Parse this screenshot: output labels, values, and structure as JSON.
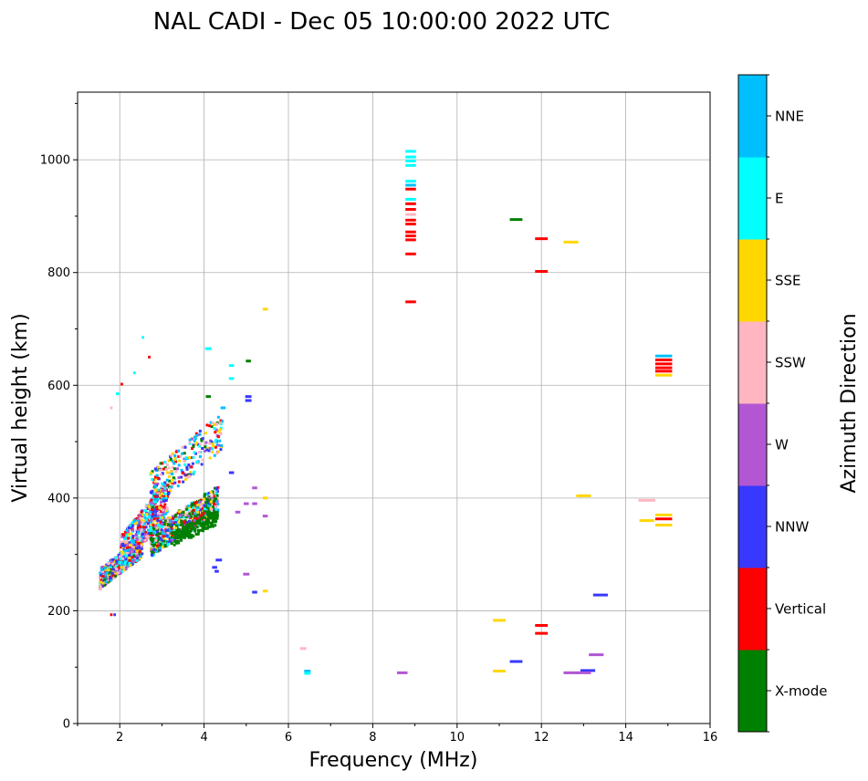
{
  "chart_data": {
    "type": "scatter",
    "title": "NAL CADI - Dec 05 10:00:00 2022 UTC",
    "xlabel": "Frequency (MHz)",
    "ylabel": "Virtual height (km)",
    "xlim": [
      1,
      16
    ],
    "ylim": [
      0,
      1120
    ],
    "xticks": [
      2,
      4,
      6,
      8,
      10,
      12,
      14,
      16
    ],
    "yticks": [
      0,
      200,
      400,
      600,
      800,
      1000
    ],
    "grid": true,
    "colorbar": {
      "title": "Azimuth Direction",
      "categories": [
        {
          "name": "X-mode",
          "color": "#008000"
        },
        {
          "name": "Vertical",
          "color": "#ff0000"
        },
        {
          "name": "NNW",
          "color": "#3838ff"
        },
        {
          "name": "W",
          "color": "#b256d4"
        },
        {
          "name": "SSW",
          "color": "#ffb6c1"
        },
        {
          "name": "SSE",
          "color": "#ffd700"
        },
        {
          "name": "E",
          "color": "#00ffff"
        },
        {
          "name": "NNE",
          "color": "#00bfff"
        }
      ]
    },
    "echoes": [
      {
        "f": 8.9,
        "h": 1015,
        "cat": "E",
        "w": 0.25
      },
      {
        "f": 8.9,
        "h": 1005,
        "cat": "E",
        "w": 0.25
      },
      {
        "f": 8.9,
        "h": 998,
        "cat": "E",
        "w": 0.25
      },
      {
        "f": 8.9,
        "h": 990,
        "cat": "E",
        "w": 0.25
      },
      {
        "f": 8.9,
        "h": 962,
        "cat": "E",
        "w": 0.25
      },
      {
        "f": 8.9,
        "h": 955,
        "cat": "NNE",
        "w": 0.25
      },
      {
        "f": 8.9,
        "h": 948,
        "cat": "Vertical",
        "w": 0.25
      },
      {
        "f": 8.9,
        "h": 930,
        "cat": "E",
        "w": 0.25
      },
      {
        "f": 8.9,
        "h": 922,
        "cat": "Vertical",
        "w": 0.25
      },
      {
        "f": 8.9,
        "h": 912,
        "cat": "Vertical",
        "w": 0.25
      },
      {
        "f": 8.9,
        "h": 903,
        "cat": "SSW",
        "w": 0.25
      },
      {
        "f": 8.9,
        "h": 893,
        "cat": "Vertical",
        "w": 0.25
      },
      {
        "f": 8.9,
        "h": 886,
        "cat": "Vertical",
        "w": 0.25
      },
      {
        "f": 8.9,
        "h": 872,
        "cat": "Vertical",
        "w": 0.25
      },
      {
        "f": 8.9,
        "h": 865,
        "cat": "Vertical",
        "w": 0.25
      },
      {
        "f": 8.9,
        "h": 858,
        "cat": "Vertical",
        "w": 0.25
      },
      {
        "f": 8.9,
        "h": 833,
        "cat": "Vertical",
        "w": 0.25
      },
      {
        "f": 8.9,
        "h": 748,
        "cat": "Vertical",
        "w": 0.25
      },
      {
        "f": 11.4,
        "h": 894,
        "cat": "X-mode",
        "w": 0.3
      },
      {
        "f": 12.0,
        "h": 860,
        "cat": "Vertical",
        "w": 0.3
      },
      {
        "f": 12.7,
        "h": 854,
        "cat": "SSE",
        "w": 0.35
      },
      {
        "f": 12.0,
        "h": 802,
        "cat": "Vertical",
        "w": 0.3
      },
      {
        "f": 14.9,
        "h": 652,
        "cat": "NNE",
        "w": 0.4
      },
      {
        "f": 14.9,
        "h": 645,
        "cat": "Vertical",
        "w": 0.4
      },
      {
        "f": 14.9,
        "h": 638,
        "cat": "Vertical",
        "w": 0.4
      },
      {
        "f": 14.9,
        "h": 631,
        "cat": "Vertical",
        "w": 0.4
      },
      {
        "f": 14.9,
        "h": 625,
        "cat": "Vertical",
        "w": 0.4
      },
      {
        "f": 14.9,
        "h": 618,
        "cat": "SSE",
        "w": 0.4
      },
      {
        "f": 13.0,
        "h": 404,
        "cat": "SSE",
        "w": 0.35
      },
      {
        "f": 14.5,
        "h": 396,
        "cat": "SSW",
        "w": 0.4
      },
      {
        "f": 14.9,
        "h": 370,
        "cat": "SSE",
        "w": 0.4
      },
      {
        "f": 14.9,
        "h": 363,
        "cat": "Vertical",
        "w": 0.4
      },
      {
        "f": 14.5,
        "h": 360,
        "cat": "SSE",
        "w": 0.35
      },
      {
        "f": 14.9,
        "h": 352,
        "cat": "SSE",
        "w": 0.4
      },
      {
        "f": 13.4,
        "h": 228,
        "cat": "NNW",
        "w": 0.35
      },
      {
        "f": 11.0,
        "h": 183,
        "cat": "SSE",
        "w": 0.3
      },
      {
        "f": 12.0,
        "h": 174,
        "cat": "Vertical",
        "w": 0.3
      },
      {
        "f": 12.0,
        "h": 160,
        "cat": "Vertical",
        "w": 0.3
      },
      {
        "f": 13.3,
        "h": 122,
        "cat": "W",
        "w": 0.35
      },
      {
        "f": 11.4,
        "h": 110,
        "cat": "NNW",
        "w": 0.3
      },
      {
        "f": 11.0,
        "h": 93,
        "cat": "SSE",
        "w": 0.3
      },
      {
        "f": 13.1,
        "h": 94,
        "cat": "NNW",
        "w": 0.35
      },
      {
        "f": 13.0,
        "h": 90,
        "cat": "W",
        "w": 0.35
      },
      {
        "f": 12.7,
        "h": 90,
        "cat": "W",
        "w": 0.35
      },
      {
        "f": 8.7,
        "h": 90,
        "cat": "W",
        "w": 0.25
      },
      {
        "f": 6.45,
        "h": 93,
        "cat": "NNE",
        "w": 0.15
      },
      {
        "f": 6.45,
        "h": 89,
        "cat": "E",
        "w": 0.15
      },
      {
        "f": 6.35,
        "h": 133,
        "cat": "SSW",
        "w": 0.15
      },
      {
        "f": 5.45,
        "h": 735,
        "cat": "SSE",
        "w": 0.12
      },
      {
        "f": 5.05,
        "h": 643,
        "cat": "X-mode",
        "w": 0.12
      },
      {
        "f": 4.1,
        "h": 665,
        "cat": "E",
        "w": 0.15
      },
      {
        "f": 4.65,
        "h": 635,
        "cat": "E",
        "w": 0.12
      },
      {
        "f": 4.65,
        "h": 612,
        "cat": "E",
        "w": 0.12
      },
      {
        "f": 4.1,
        "h": 580,
        "cat": "X-mode",
        "w": 0.12
      },
      {
        "f": 5.05,
        "h": 580,
        "cat": "NNW",
        "w": 0.15
      },
      {
        "f": 5.05,
        "h": 573,
        "cat": "NNW",
        "w": 0.15
      },
      {
        "f": 4.45,
        "h": 560,
        "cat": "NNE",
        "w": 0.12
      },
      {
        "f": 4.65,
        "h": 445,
        "cat": "NNW",
        "w": 0.12
      },
      {
        "f": 5.2,
        "h": 418,
        "cat": "W",
        "w": 0.12
      },
      {
        "f": 5.2,
        "h": 390,
        "cat": "W",
        "w": 0.12
      },
      {
        "f": 5.0,
        "h": 390,
        "cat": "W",
        "w": 0.12
      },
      {
        "f": 5.45,
        "h": 400,
        "cat": "SSE",
        "w": 0.12
      },
      {
        "f": 5.45,
        "h": 368,
        "cat": "W",
        "w": 0.12
      },
      {
        "f": 4.8,
        "h": 375,
        "cat": "W",
        "w": 0.12
      },
      {
        "f": 5.0,
        "h": 265,
        "cat": "W",
        "w": 0.15
      },
      {
        "f": 5.45,
        "h": 235,
        "cat": "SSE",
        "w": 0.12
      },
      {
        "f": 5.2,
        "h": 233,
        "cat": "NNW",
        "w": 0.12
      },
      {
        "f": 4.35,
        "h": 290,
        "cat": "NNW",
        "w": 0.15
      },
      {
        "f": 4.25,
        "h": 277,
        "cat": "NNW",
        "w": 0.12
      },
      {
        "f": 4.3,
        "h": 270,
        "cat": "NNW",
        "w": 0.1
      },
      {
        "f": 2.55,
        "h": 685,
        "cat": "E",
        "w": 0.06
      },
      {
        "f": 2.7,
        "h": 650,
        "cat": "Vertical",
        "w": 0.06
      },
      {
        "f": 2.35,
        "h": 622,
        "cat": "E",
        "w": 0.06
      },
      {
        "f": 2.05,
        "h": 602,
        "cat": "Vertical",
        "w": 0.06
      },
      {
        "f": 1.95,
        "h": 585,
        "cat": "E",
        "w": 0.08
      },
      {
        "f": 1.8,
        "h": 560,
        "cat": "SSW",
        "w": 0.06
      },
      {
        "f": 1.8,
        "h": 193,
        "cat": "Vertical",
        "w": 0.06
      },
      {
        "f": 1.88,
        "h": 193,
        "cat": "NNW",
        "w": 0.06
      }
    ],
    "clusters": [
      {
        "f0": 1.5,
        "f1": 2.5,
        "h0": 250,
        "h1": 330,
        "n": 600,
        "mix": [
          "Vertical",
          "SSW",
          "NNE",
          "SSE",
          "E",
          "W",
          "NNW",
          "X-mode"
        ]
      },
      {
        "f0": 2.0,
        "f1": 3.1,
        "h0": 290,
        "h1": 430,
        "n": 500,
        "mix": [
          "Vertical",
          "SSW",
          "SSE",
          "NNE",
          "E",
          "W",
          "NNW"
        ]
      },
      {
        "f0": 2.7,
        "f1": 4.3,
        "h0": 310,
        "h1": 420,
        "n": 650,
        "mix": [
          "X-mode",
          "X-mode",
          "X-mode",
          "X-mode",
          "SSE",
          "E",
          "W",
          "NNW",
          "Vertical",
          "SSW",
          "NNE"
        ]
      },
      {
        "f0": 2.7,
        "f1": 4.4,
        "h0": 400,
        "h1": 550,
        "n": 260,
        "mix": [
          "Vertical",
          "SSE",
          "NNW",
          "W",
          "X-mode",
          "E",
          "NNE",
          "SSW"
        ]
      },
      {
        "f0": 3.2,
        "f1": 4.3,
        "h0": 320,
        "h1": 380,
        "n": 160,
        "mix": [
          "X-mode"
        ]
      }
    ]
  }
}
